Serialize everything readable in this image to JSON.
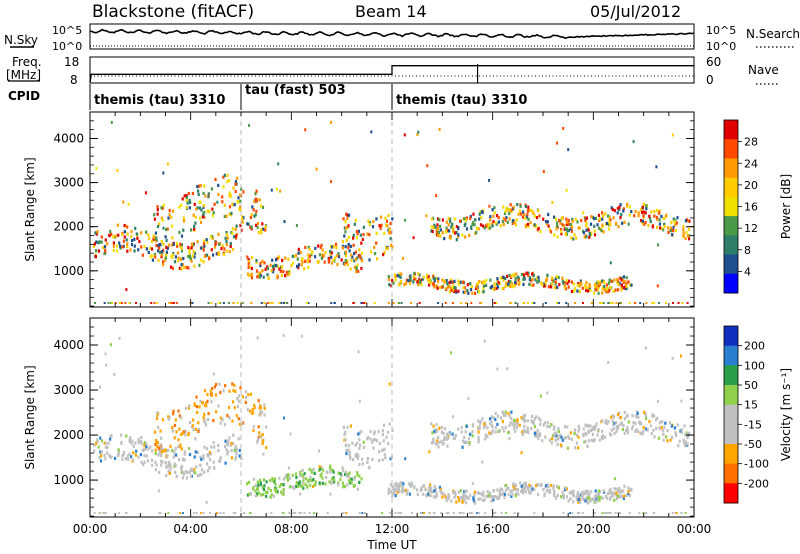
{
  "header": {
    "title": "Blackstone (fitACF)",
    "beam": "Beam 14",
    "date": "05/Jul/2012"
  },
  "top_panels": {
    "nsky_label": "N.Sky",
    "nsearch_label": "N.Search",
    "left_ticks": [
      "10^5",
      "10^0"
    ],
    "right_ticks": [
      "10^5",
      "10^0"
    ],
    "freq_label_1": "Freq.",
    "freq_label_2": "[MHz]",
    "freq_ticks": [
      "18",
      "8"
    ],
    "nave_label": "Nave",
    "nave_ticks": [
      "60",
      "0"
    ],
    "cpid_label": "CPID",
    "cpid_segments": [
      {
        "label": "themis (tau) 3310",
        "start_hour": 0
      },
      {
        "label": "tau (fast) 503",
        "start_hour": 6
      },
      {
        "label": "themis (tau) 3310",
        "start_hour": 12
      }
    ],
    "freq_steps": [
      {
        "hour": 0,
        "mhz": 10
      },
      {
        "hour": 0.05,
        "mhz": 10
      },
      {
        "hour": 12,
        "mhz": 14
      }
    ]
  },
  "chart_data": [
    {
      "type": "heatmap",
      "name": "power",
      "ylabel": "Slant Range [km]",
      "xlabel": "Time UT",
      "x_ticks": [
        "00:00",
        "04:00",
        "08:00",
        "12:00",
        "16:00",
        "20:00",
        "00:00"
      ],
      "x_range_hours": [
        0,
        24
      ],
      "y_ticks": [
        1000,
        2000,
        3000,
        4000
      ],
      "ylim": [
        180,
        4600
      ],
      "colorbar_label": "Power [dB]",
      "colorbar_ticks": [
        "28",
        "24",
        "20",
        "16",
        "12",
        "8",
        "4"
      ],
      "colorbar_colors": [
        "#e00000",
        "#ff4a00",
        "#ff9a00",
        "#ffcc00",
        "#f0e000",
        "#4a9a4a",
        "#2e7f6a",
        "#1f4f8f",
        "#0000ff"
      ],
      "echo_bands": [
        {
          "t0": 0.1,
          "t1": 6.0,
          "r0": 1150,
          "r1": 2000
        },
        {
          "t0": 2.5,
          "t1": 7.0,
          "r0": 1700,
          "r1": 3100
        },
        {
          "t0": 6.2,
          "t1": 10.8,
          "r0": 900,
          "r1": 1600
        },
        {
          "t0": 10.0,
          "t1": 12.0,
          "r0": 1400,
          "r1": 2700
        },
        {
          "t0": 11.8,
          "t1": 21.5,
          "r0": 550,
          "r1": 950
        },
        {
          "t0": 13.5,
          "t1": 23.8,
          "r0": 1800,
          "r1": 2500
        }
      ]
    },
    {
      "type": "heatmap",
      "name": "velocity",
      "ylabel": "Slant Range [km]",
      "xlabel": "Time UT",
      "x_ticks": [
        "00:00",
        "04:00",
        "08:00",
        "12:00",
        "16:00",
        "20:00",
        "00:00"
      ],
      "x_range_hours": [
        0,
        24
      ],
      "y_ticks": [
        1000,
        2000,
        3000,
        4000
      ],
      "ylim": [
        180,
        4600
      ],
      "colorbar_label": "Velocity [m s⁻¹]",
      "colorbar_ticks": [
        "200",
        "100",
        "50",
        "15",
        "-15",
        "-50",
        "-100",
        "-200"
      ],
      "colorbar_colors": [
        "#1030c0",
        "#2a7fd0",
        "#2aa04a",
        "#8fd04a",
        "#c0c0c0",
        "#c0c0c0",
        "#ffa500",
        "#ff7000",
        "#ff0000"
      ],
      "echo_bands": [
        {
          "t0": 0.1,
          "t1": 6.0,
          "r0": 1150,
          "r1": 2000
        },
        {
          "t0": 2.5,
          "t1": 7.0,
          "r0": 1700,
          "r1": 3100
        },
        {
          "t0": 6.2,
          "t1": 10.8,
          "r0": 700,
          "r1": 1300
        },
        {
          "t0": 10.0,
          "t1": 12.0,
          "r0": 1400,
          "r1": 2700
        },
        {
          "t0": 11.8,
          "t1": 21.5,
          "r0": 550,
          "r1": 950
        },
        {
          "t0": 13.5,
          "t1": 23.8,
          "r0": 1800,
          "r1": 2500
        }
      ]
    }
  ]
}
